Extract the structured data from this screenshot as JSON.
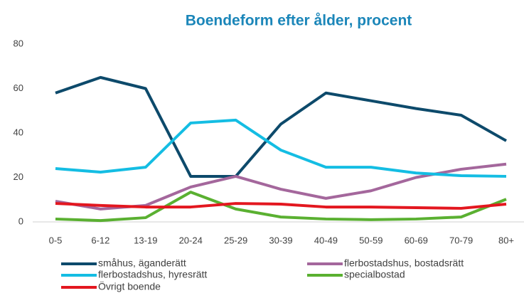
{
  "chart_data": {
    "type": "line",
    "title": "Boendeform efter ålder, procent",
    "categories": [
      "0-5",
      "6-12",
      "13-19",
      "20-24",
      "25-29",
      "30-39",
      "40-49",
      "50-59",
      "60-69",
      "70-79",
      "80+"
    ],
    "series": [
      {
        "name": "småhus, äganderätt",
        "color": "#0d4a6b",
        "values": [
          58,
          65,
          60,
          20.5,
          20.5,
          44,
          58,
          54.5,
          51,
          48,
          36.5
        ]
      },
      {
        "name": "flerbostadshus, bostadsrätt",
        "color": "#a4679c",
        "values": [
          9.3,
          5.8,
          7.4,
          15.7,
          20.5,
          14.7,
          10.6,
          14,
          20,
          23.7,
          26
        ]
      },
      {
        "name": "flerbostadshus, hyresrätt",
        "color": "#14bde3",
        "values": [
          24,
          22.4,
          24.6,
          44.5,
          45.8,
          32.3,
          24.6,
          24.6,
          22,
          20.8,
          20.5
        ]
      },
      {
        "name": "specialbostad",
        "color": "#5ab031",
        "values": [
          1.3,
          0.6,
          1.9,
          13.4,
          5.8,
          2.2,
          1.3,
          1,
          1.3,
          2.2,
          10.2
        ]
      },
      {
        "name": "Övrigt boende",
        "color": "#e3171f",
        "values": [
          8.3,
          7.4,
          6.7,
          6.7,
          8.3,
          8,
          6.7,
          6.7,
          6.4,
          6.1,
          8
        ]
      }
    ],
    "ylim": [
      0,
      80
    ],
    "yticks": [
      0,
      20,
      40,
      60,
      80
    ],
    "grid": false
  }
}
